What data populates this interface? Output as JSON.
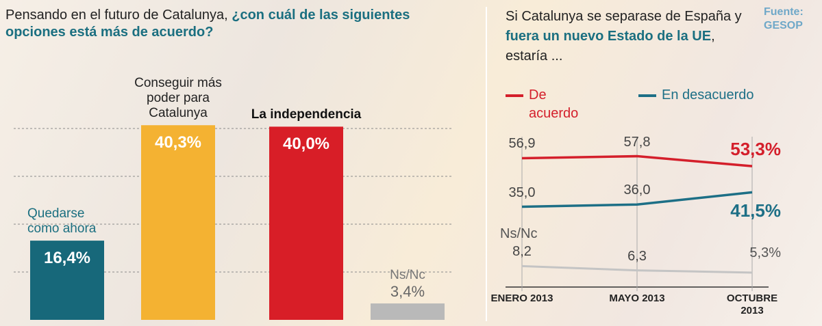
{
  "chart_data": [
    {
      "type": "bar",
      "title": "Pensando en el futuro de Catalunya,",
      "title_highlight": "¿con cuál de las siguientes opciones está más de acuerdo?",
      "categories": [
        "Quedarse como ahora",
        "Conseguir más poder para Catalunya",
        "La independencia",
        "Ns/Nc"
      ],
      "values": [
        16.4,
        40.3,
        40.0,
        3.4
      ],
      "value_labels": [
        "16,4%",
        "40,3%",
        "40,0%",
        "3,4%"
      ],
      "colors": [
        "#17687a",
        "#f4b232",
        "#d81e27",
        "#b9b9b9"
      ],
      "ylim": [
        0,
        45
      ]
    },
    {
      "type": "line",
      "title": "Si Catalunya se separase de España y",
      "title_highlight": "fuera un nuevo Estado de la UE",
      "title_end": ", estaría ...",
      "source": "Fuente: GESOP",
      "categories": [
        "ENERO 2013",
        "MAYO 2013",
        "OCTUBRE 2013"
      ],
      "ylim": [
        0,
        70
      ],
      "series": [
        {
          "name": "De acuerdo",
          "color": "#d41f2b",
          "values": [
            56.9,
            57.8,
            53.3
          ],
          "value_labels": [
            "56,9",
            "57,8",
            "53,3%"
          ]
        },
        {
          "name": "En desacuerdo",
          "color": "#1d6f86",
          "values": [
            35.0,
            36.0,
            41.5
          ],
          "value_labels": [
            "35,0",
            "36,0",
            "41,5%"
          ]
        },
        {
          "name": "Ns/Nc",
          "color": "#c4c4c4",
          "values": [
            8.2,
            6.3,
            5.3
          ],
          "value_labels": [
            "8,2",
            "6,3",
            "5,3%"
          ]
        }
      ]
    }
  ]
}
